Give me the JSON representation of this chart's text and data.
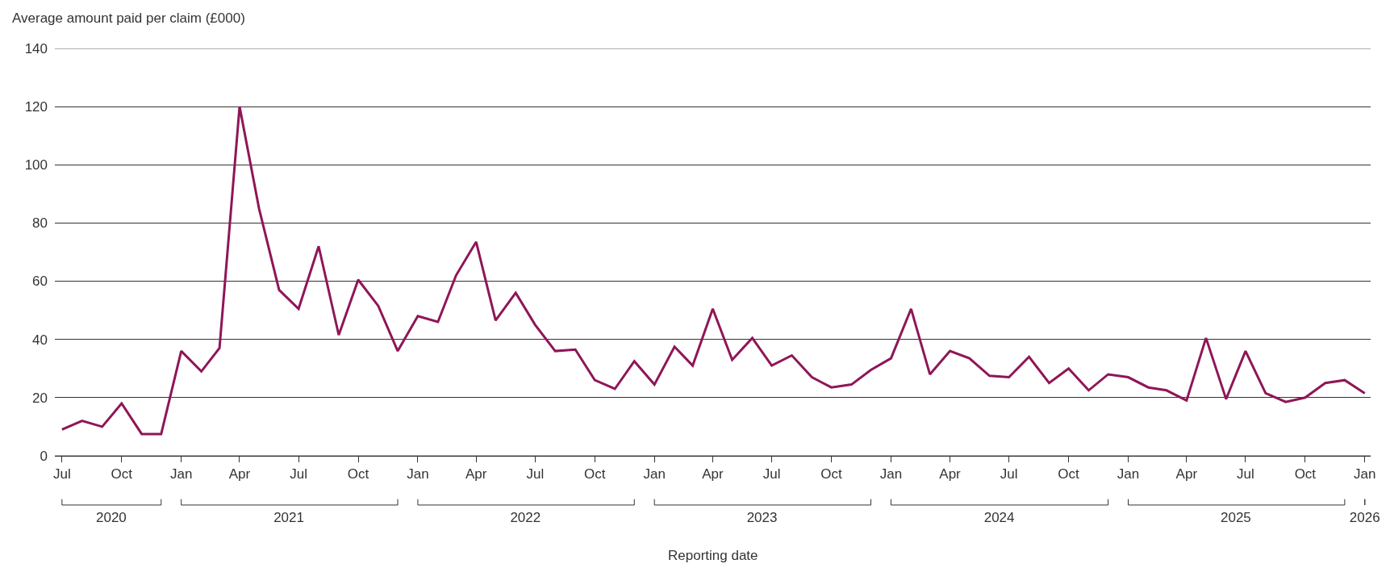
{
  "chart_data": {
    "type": "line",
    "ylabel": "Average amount paid per claim (£000)",
    "xlabel": "Reporting date",
    "x": [
      "2020-07",
      "2020-08",
      "2020-09",
      "2020-10",
      "2020-11",
      "2020-12",
      "2021-01",
      "2021-02",
      "2021-03",
      "2021-04",
      "2021-05",
      "2021-06",
      "2021-07",
      "2021-08",
      "2021-09",
      "2021-10",
      "2021-11",
      "2021-12",
      "2022-01",
      "2022-02",
      "2022-03",
      "2022-04",
      "2022-05",
      "2022-06",
      "2022-07",
      "2022-08",
      "2022-09",
      "2022-10",
      "2022-11",
      "2022-12",
      "2023-01",
      "2023-02",
      "2023-03",
      "2023-04",
      "2023-05",
      "2023-06",
      "2023-07",
      "2023-08",
      "2023-09",
      "2023-10",
      "2023-11",
      "2023-12",
      "2024-01",
      "2024-02",
      "2024-03",
      "2024-04",
      "2024-05",
      "2024-06",
      "2024-07",
      "2024-08",
      "2024-09",
      "2024-10",
      "2024-11",
      "2024-12",
      "2025-01",
      "2025-02",
      "2025-03",
      "2025-04",
      "2025-05",
      "2025-06",
      "2025-07",
      "2025-08",
      "2025-09",
      "2025-10",
      "2025-11",
      "2025-12",
      "2026-01"
    ],
    "series": [
      {
        "color": "#8f1657",
        "values": [
          9,
          12,
          10,
          18,
          7.5,
          7.5,
          36,
          29,
          37,
          120,
          85,
          57,
          50.5,
          72,
          41.5,
          60.5,
          51.5,
          36,
          48,
          46,
          62,
          73.5,
          46.5,
          56,
          45,
          36,
          36.5,
          26,
          23,
          32.5,
          24.5,
          37.5,
          31,
          50.5,
          33,
          40.5,
          31,
          34.5,
          27,
          23.5,
          24.5,
          29.5,
          33.5,
          50.5,
          28,
          36,
          33.5,
          27.5,
          27,
          34,
          25,
          30,
          22.5,
          28,
          27,
          23.5,
          22.5,
          19,
          40.5,
          19.5,
          36,
          21.5,
          18.5,
          20,
          25,
          26,
          21.5
        ]
      }
    ],
    "xlim": [
      "2020-06-20",
      "2026-01-10"
    ],
    "xticks": [
      {
        "value": "2020-07",
        "label": "Jul"
      },
      {
        "value": "2020-10",
        "label": "Oct"
      },
      {
        "value": "2021-01",
        "label": "Jan"
      },
      {
        "value": "2021-04",
        "label": "Apr"
      },
      {
        "value": "2021-07",
        "label": "Jul"
      },
      {
        "value": "2021-10",
        "label": "Oct"
      },
      {
        "value": "2022-01",
        "label": "Jan"
      },
      {
        "value": "2022-04",
        "label": "Apr"
      },
      {
        "value": "2022-07",
        "label": "Jul"
      },
      {
        "value": "2022-10",
        "label": "Oct"
      },
      {
        "value": "2023-01",
        "label": "Jan"
      },
      {
        "value": "2023-04",
        "label": "Apr"
      },
      {
        "value": "2023-07",
        "label": "Jul"
      },
      {
        "value": "2023-10",
        "label": "Oct"
      },
      {
        "value": "2024-01",
        "label": "Jan"
      },
      {
        "value": "2024-04",
        "label": "Apr"
      },
      {
        "value": "2024-07",
        "label": "Jul"
      },
      {
        "value": "2024-10",
        "label": "Oct"
      },
      {
        "value": "2025-01",
        "label": "Jan"
      },
      {
        "value": "2025-04",
        "label": "Apr"
      },
      {
        "value": "2025-07",
        "label": "Jul"
      },
      {
        "value": "2025-10",
        "label": "Oct"
      },
      {
        "value": "2026-01",
        "label": "Jan"
      }
    ],
    "x2lim": [
      "2020-06-20",
      "2026-01-10"
    ],
    "x2ticks": [
      {
        "value": "2020-09-15",
        "label": "2020"
      },
      {
        "value": "2021-06-16",
        "label": "2021"
      },
      {
        "value": "2022-06-16",
        "label": "2022"
      },
      {
        "value": "2023-06-16",
        "label": "2023"
      },
      {
        "value": "2024-06-16",
        "label": "2024"
      },
      {
        "value": "2025-06-16",
        "label": "2025"
      },
      {
        "value": "2026-01-01",
        "label": "2026"
      }
    ],
    "ylim": [
      0,
      140
    ],
    "yticks": [
      0,
      20,
      40,
      60,
      80,
      100,
      120,
      140
    ],
    "grid": "y",
    "marker": "none",
    "line_style": "solid"
  }
}
